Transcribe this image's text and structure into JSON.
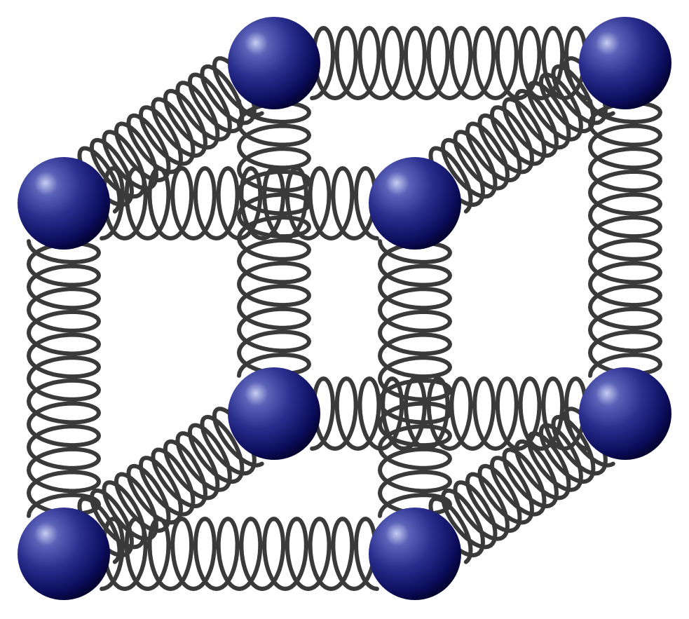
{
  "diagram": {
    "type": "spring-lattice-cube",
    "atom_count": 8,
    "spring_count": 12,
    "coils_per_spring": 12,
    "colors": {
      "background": "#ffffff",
      "spring": "#3a3a3a",
      "atom_highlight": "#c8cdf2",
      "atom_mid": "#2a2f8f",
      "atom_base": "#0b0c5a",
      "atom_shadow": "#03032f"
    },
    "atoms": [
      {
        "id": "front-top-left"
      },
      {
        "id": "front-top-right"
      },
      {
        "id": "front-bottom-left"
      },
      {
        "id": "front-bottom-right"
      },
      {
        "id": "back-top-left"
      },
      {
        "id": "back-top-right"
      },
      {
        "id": "back-bottom-left"
      },
      {
        "id": "back-bottom-right"
      }
    ],
    "springs": [
      {
        "id": "back-top",
        "from": "back-top-left",
        "to": "back-top-right"
      },
      {
        "id": "back-left",
        "from": "back-top-left",
        "to": "back-bottom-left"
      },
      {
        "id": "back-right",
        "from": "back-top-right",
        "to": "back-bottom-right"
      },
      {
        "id": "back-bottom",
        "from": "back-bottom-left",
        "to": "back-bottom-right"
      },
      {
        "id": "depth-top-left",
        "from": "front-top-left",
        "to": "back-top-left"
      },
      {
        "id": "depth-top-right",
        "from": "front-top-right",
        "to": "back-top-right"
      },
      {
        "id": "depth-bottom-left",
        "from": "front-bottom-left",
        "to": "back-bottom-left"
      },
      {
        "id": "depth-bottom-right",
        "from": "front-bottom-right",
        "to": "back-bottom-right"
      },
      {
        "id": "front-top",
        "from": "front-top-left",
        "to": "front-top-right"
      },
      {
        "id": "front-left",
        "from": "front-top-left",
        "to": "front-bottom-left"
      },
      {
        "id": "front-right",
        "from": "front-top-right",
        "to": "front-bottom-right"
      },
      {
        "id": "front-bottom",
        "from": "front-bottom-left",
        "to": "front-bottom-right"
      }
    ]
  }
}
